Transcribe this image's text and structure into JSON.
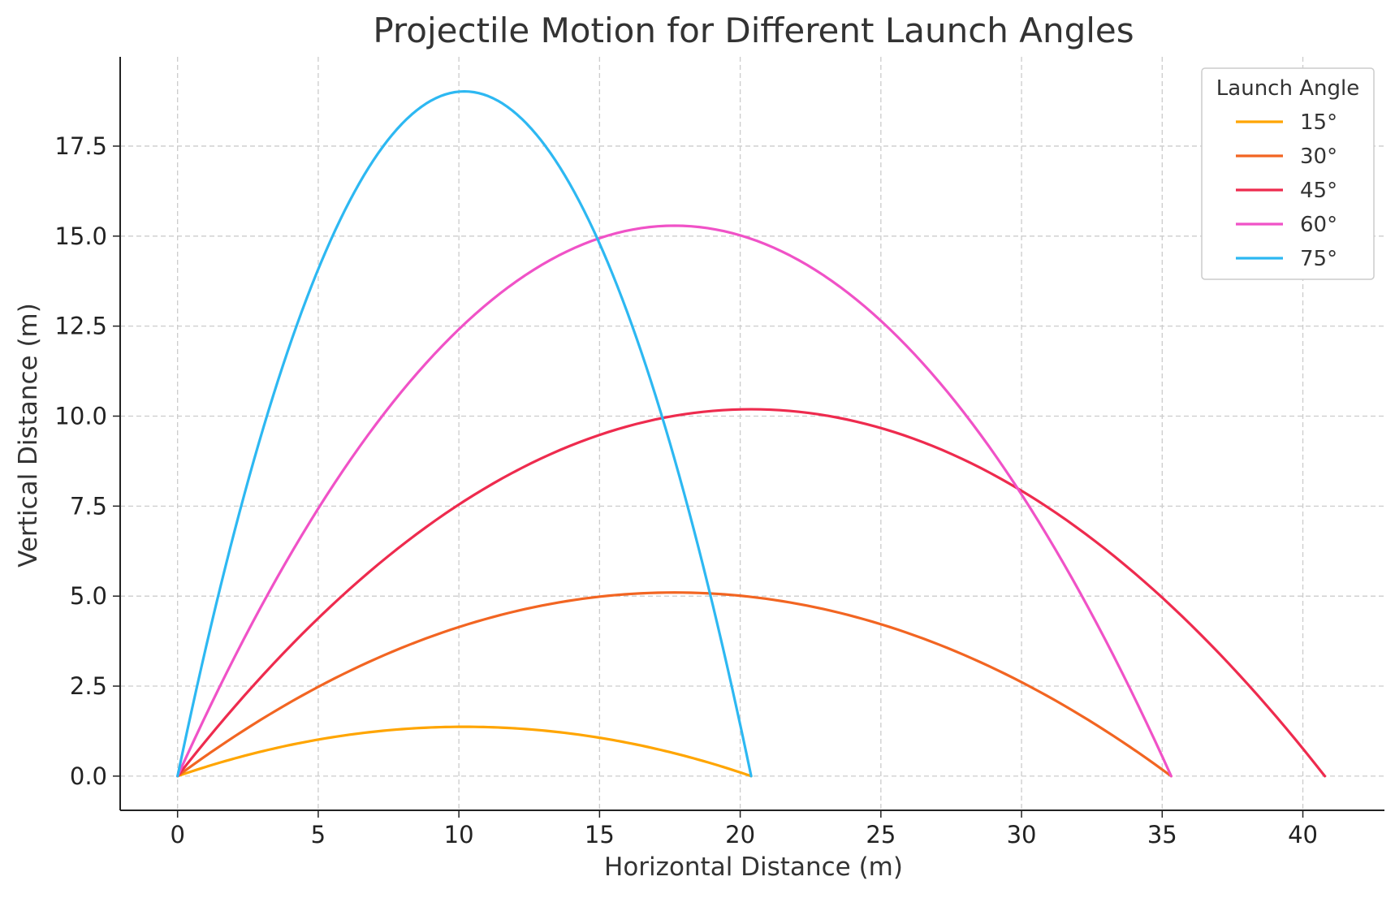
{
  "chart_data": {
    "type": "line",
    "title": "Projectile Motion for Different Launch Angles",
    "xlabel": "Horizontal Distance (m)",
    "ylabel": "Vertical Distance (m)",
    "xlim": [
      -2.04,
      42.9
    ],
    "ylim": [
      -0.95,
      19.98
    ],
    "xticks": [
      0,
      5,
      10,
      15,
      20,
      25,
      30,
      35,
      40
    ],
    "xtick_labels": [
      "0",
      "5",
      "10",
      "15",
      "20",
      "25",
      "30",
      "35",
      "40"
    ],
    "yticks": [
      0,
      2.5,
      5,
      7.5,
      10,
      12.5,
      15,
      17.5
    ],
    "ytick_labels": [
      "0.0",
      "2.5",
      "5.0",
      "7.5",
      "10.0",
      "12.5",
      "15.0",
      "17.5"
    ],
    "grid": true,
    "grid_style": "dashed",
    "legend": {
      "title": "Launch Angle",
      "position": "top-right"
    },
    "series": [
      {
        "name": "15°",
        "color": "#FFA500",
        "range": 20.39,
        "max_height": 1.37
      },
      {
        "name": "30°",
        "color": "#F26522",
        "range": 35.32,
        "max_height": 5.1
      },
      {
        "name": "45°",
        "color": "#EE2B4E",
        "range": 40.78,
        "max_height": 10.19
      },
      {
        "name": "60°",
        "color": "#F052C7",
        "range": 35.32,
        "max_height": 15.29
      },
      {
        "name": "75°",
        "color": "#2DB8F2",
        "range": 20.39,
        "max_height": 19.02
      }
    ]
  }
}
